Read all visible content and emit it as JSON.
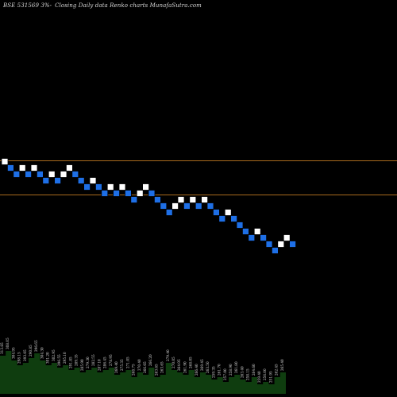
{
  "header": {
    "symbol": "BSE 531569 3%-",
    "subtitle": "Closing Daily data  Renko  charts MunafaSutra.com"
  },
  "colors": {
    "background": "#000000",
    "up_brick": "#ffffff",
    "down_brick": "#1e6fe6",
    "brick_border": "#000000",
    "reference_line": "#a86a1e",
    "volume_fill": "#0f3d0f",
    "volume_label": "#d8d8d8"
  },
  "chart_data": {
    "type": "renko",
    "reference_lines": [
      314.5,
      293.0
    ],
    "bricks": [
      {
        "dir": "up",
        "value": 314.0
      },
      {
        "dir": "down",
        "value": 310.0
      },
      {
        "dir": "down",
        "value": 306.0
      },
      {
        "dir": "up",
        "value": 310.0
      },
      {
        "dir": "down",
        "value": 306.0
      },
      {
        "dir": "up",
        "value": 310.0
      },
      {
        "dir": "down",
        "value": 306.0
      },
      {
        "dir": "down",
        "value": 302.0
      },
      {
        "dir": "up",
        "value": 306.0
      },
      {
        "dir": "down",
        "value": 302.0
      },
      {
        "dir": "up",
        "value": 306.0
      },
      {
        "dir": "up",
        "value": 310.0
      },
      {
        "dir": "down",
        "value": 306.0
      },
      {
        "dir": "down",
        "value": 302.0
      },
      {
        "dir": "down",
        "value": 298.0
      },
      {
        "dir": "up",
        "value": 302.0
      },
      {
        "dir": "down",
        "value": 298.0
      },
      {
        "dir": "down",
        "value": 294.0
      },
      {
        "dir": "up",
        "value": 298.0
      },
      {
        "dir": "down",
        "value": 294.0
      },
      {
        "dir": "up",
        "value": 298.0
      },
      {
        "dir": "down",
        "value": 294.0
      },
      {
        "dir": "down",
        "value": 290.0
      },
      {
        "dir": "up",
        "value": 294.0
      },
      {
        "dir": "up",
        "value": 298.0
      },
      {
        "dir": "down",
        "value": 294.0
      },
      {
        "dir": "down",
        "value": 290.0
      },
      {
        "dir": "down",
        "value": 286.0
      },
      {
        "dir": "down",
        "value": 282.0
      },
      {
        "dir": "up",
        "value": 286.0
      },
      {
        "dir": "up",
        "value": 290.0
      },
      {
        "dir": "down",
        "value": 286.0
      },
      {
        "dir": "up",
        "value": 290.0
      },
      {
        "dir": "down",
        "value": 286.0
      },
      {
        "dir": "up",
        "value": 290.0
      },
      {
        "dir": "down",
        "value": 286.0
      },
      {
        "dir": "down",
        "value": 282.0
      },
      {
        "dir": "down",
        "value": 278.0
      },
      {
        "dir": "up",
        "value": 282.0
      },
      {
        "dir": "down",
        "value": 278.0
      },
      {
        "dir": "down",
        "value": 274.0
      },
      {
        "dir": "down",
        "value": 270.0
      },
      {
        "dir": "down",
        "value": 266.0
      },
      {
        "dir": "up",
        "value": 270.0
      },
      {
        "dir": "down",
        "value": 266.0
      },
      {
        "dir": "down",
        "value": 262.0
      },
      {
        "dir": "down",
        "value": 258.0
      },
      {
        "dir": "up",
        "value": 262.0
      },
      {
        "dir": "up",
        "value": 266.0
      },
      {
        "dir": "down",
        "value": 262.0
      }
    ],
    "volume_labels": [
      "313.85",
      "308.05",
      "304.95",
      "298.15",
      "293.05",
      "290.85",
      "296.65",
      "304.30",
      "301.20",
      "302.95",
      "296.55",
      "295.10",
      "291.85",
      "289.35",
      "285.90",
      "279.30",
      "282.55",
      "287.10",
      "286.45",
      "278.95",
      "269.40",
      "275.35",
      "271.05",
      "268.75",
      "270.40",
      "266.05",
      "266.20",
      "263.65",
      "263.65",
      "279.40",
      "270.05",
      "264.95",
      "261.90",
      "268.05",
      "266.40",
      "269.45",
      "263.50",
      "259.35",
      "261.70",
      "257.00",
      "258.90",
      "261.80",
      "263.40",
      "258.15",
      "264.60",
      "259.40",
      "256.00",
      "251.95",
      "262.45",
      "265.40"
    ],
    "volume_heights": [
      0.8,
      0.9,
      0.7,
      0.6,
      0.65,
      0.75,
      0.85,
      0.7,
      0.6,
      0.65,
      0.55,
      0.6,
      0.5,
      0.55,
      0.45,
      0.5,
      0.55,
      0.45,
      0.5,
      0.55,
      0.4,
      0.45,
      0.5,
      0.35,
      0.45,
      0.4,
      0.55,
      0.35,
      0.4,
      0.65,
      0.5,
      0.45,
      0.4,
      0.5,
      0.35,
      0.45,
      0.4,
      0.3,
      0.35,
      0.25,
      0.35,
      0.4,
      0.3,
      0.25,
      0.35,
      0.2,
      0.25,
      0.2,
      0.35,
      0.45
    ]
  }
}
